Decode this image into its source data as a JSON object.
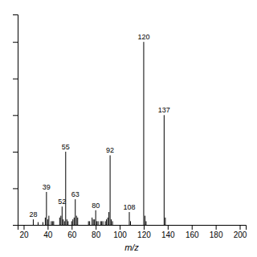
{
  "chart_data": {
    "type": "stem",
    "x": [
      28,
      32,
      36,
      38,
      39,
      40,
      41,
      43,
      44,
      45,
      50,
      51,
      52,
      53,
      54,
      55,
      56,
      57,
      60,
      61,
      62,
      63,
      64,
      65,
      74,
      75,
      77,
      78,
      79,
      80,
      81,
      82,
      84,
      85,
      86,
      88,
      89,
      90,
      91,
      92,
      93,
      94,
      108,
      109,
      120,
      121,
      122,
      137,
      138
    ],
    "values": [
      3,
      1.5,
      1.5,
      4,
      18,
      3,
      5,
      2,
      2,
      2,
      4,
      5,
      10,
      3,
      2,
      40,
      3,
      2,
      2,
      3,
      4,
      14,
      5,
      4,
      2,
      2,
      4,
      3,
      3,
      8,
      2,
      2,
      2,
      2,
      2,
      2,
      3,
      4,
      7,
      38,
      3,
      2,
      7,
      2,
      100,
      5,
      2,
      60,
      4
    ],
    "labels": [
      "28",
      null,
      null,
      null,
      "39",
      null,
      null,
      null,
      null,
      null,
      null,
      null,
      "52",
      null,
      null,
      "55",
      null,
      null,
      null,
      null,
      null,
      "63",
      null,
      null,
      null,
      null,
      null,
      null,
      null,
      "80",
      null,
      null,
      null,
      null,
      null,
      null,
      null,
      null,
      null,
      "92",
      null,
      null,
      "108",
      null,
      "120",
      null,
      null,
      "137",
      null
    ],
    "xlabel": "m/z",
    "color": "#000000",
    "xlim": [
      15,
      205
    ],
    "ylim": [
      0,
      115
    ],
    "xticks": [
      20,
      40,
      60,
      80,
      100,
      120,
      140,
      160,
      180,
      200
    ],
    "yticks": [
      0,
      20,
      40,
      60,
      80,
      100
    ],
    "tick_labels": "x",
    "grid": false
  }
}
